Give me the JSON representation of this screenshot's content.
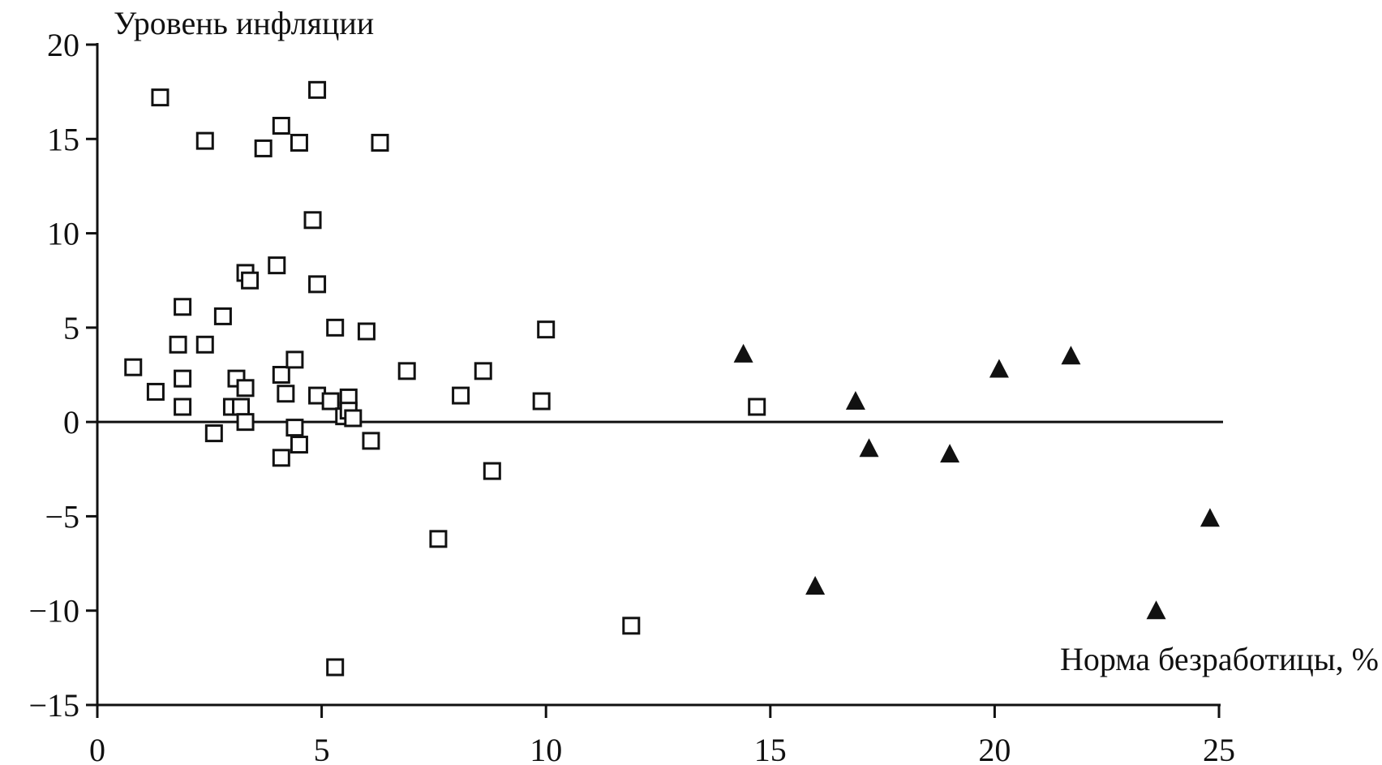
{
  "chart_data": {
    "type": "scatter",
    "ylabel": "Уровень инфляции",
    "xlabel": "Норма безработицы, %",
    "xlim": [
      0,
      25
    ],
    "ylim": [
      -15,
      20
    ],
    "x_ticks": [
      "0",
      "5",
      "10",
      "15",
      "20",
      "25"
    ],
    "y_ticks": [
      "20",
      "15",
      "10",
      "5",
      "0",
      "−5",
      "−10",
      "−15"
    ],
    "x_tick_values": [
      0,
      5,
      10,
      15,
      20,
      25
    ],
    "y_tick_values": [
      20,
      15,
      10,
      5,
      0,
      -5,
      -10,
      -15
    ],
    "zero_line": true,
    "grid": false,
    "series": [
      {
        "marker": "square-open",
        "color": "#111111",
        "points": [
          [
            1.4,
            17.2
          ],
          [
            4.9,
            17.6
          ],
          [
            2.4,
            14.9
          ],
          [
            4.1,
            15.7
          ],
          [
            3.7,
            14.5
          ],
          [
            4.5,
            14.8
          ],
          [
            6.3,
            14.8
          ],
          [
            4.8,
            10.7
          ],
          [
            3.3,
            7.9
          ],
          [
            3.4,
            7.5
          ],
          [
            4.0,
            8.3
          ],
          [
            4.9,
            7.3
          ],
          [
            1.9,
            6.1
          ],
          [
            2.8,
            5.6
          ],
          [
            1.8,
            4.1
          ],
          [
            2.4,
            4.1
          ],
          [
            5.3,
            5.0
          ],
          [
            6.0,
            4.8
          ],
          [
            10.0,
            4.9
          ],
          [
            0.8,
            2.9
          ],
          [
            1.3,
            1.6
          ],
          [
            1.9,
            2.3
          ],
          [
            3.1,
            2.3
          ],
          [
            3.3,
            1.8
          ],
          [
            4.1,
            2.5
          ],
          [
            4.4,
            3.3
          ],
          [
            4.2,
            1.5
          ],
          [
            4.9,
            1.4
          ],
          [
            5.2,
            1.1
          ],
          [
            5.6,
            1.3
          ],
          [
            6.9,
            2.7
          ],
          [
            8.1,
            1.4
          ],
          [
            8.6,
            2.7
          ],
          [
            9.9,
            1.1
          ],
          [
            1.9,
            0.8
          ],
          [
            3.0,
            0.8
          ],
          [
            3.2,
            0.8
          ],
          [
            3.3,
            0.0
          ],
          [
            2.6,
            -0.6
          ],
          [
            5.5,
            0.3
          ],
          [
            5.6,
            0.6
          ],
          [
            5.7,
            0.2
          ],
          [
            4.4,
            -0.3
          ],
          [
            4.5,
            -1.2
          ],
          [
            4.1,
            -1.9
          ],
          [
            6.1,
            -1.0
          ],
          [
            8.8,
            -2.6
          ],
          [
            7.6,
            -6.2
          ],
          [
            11.9,
            -10.8
          ],
          [
            5.3,
            -13.0
          ],
          [
            14.7,
            0.8
          ]
        ]
      },
      {
        "marker": "triangle-filled",
        "color": "#111111",
        "points": [
          [
            14.4,
            3.6
          ],
          [
            16.9,
            1.1
          ],
          [
            17.2,
            -1.4
          ],
          [
            19.0,
            -1.7
          ],
          [
            20.1,
            2.8
          ],
          [
            21.7,
            3.5
          ],
          [
            16.0,
            -8.7
          ],
          [
            23.6,
            -10.0
          ],
          [
            24.8,
            -5.1
          ]
        ]
      }
    ]
  }
}
